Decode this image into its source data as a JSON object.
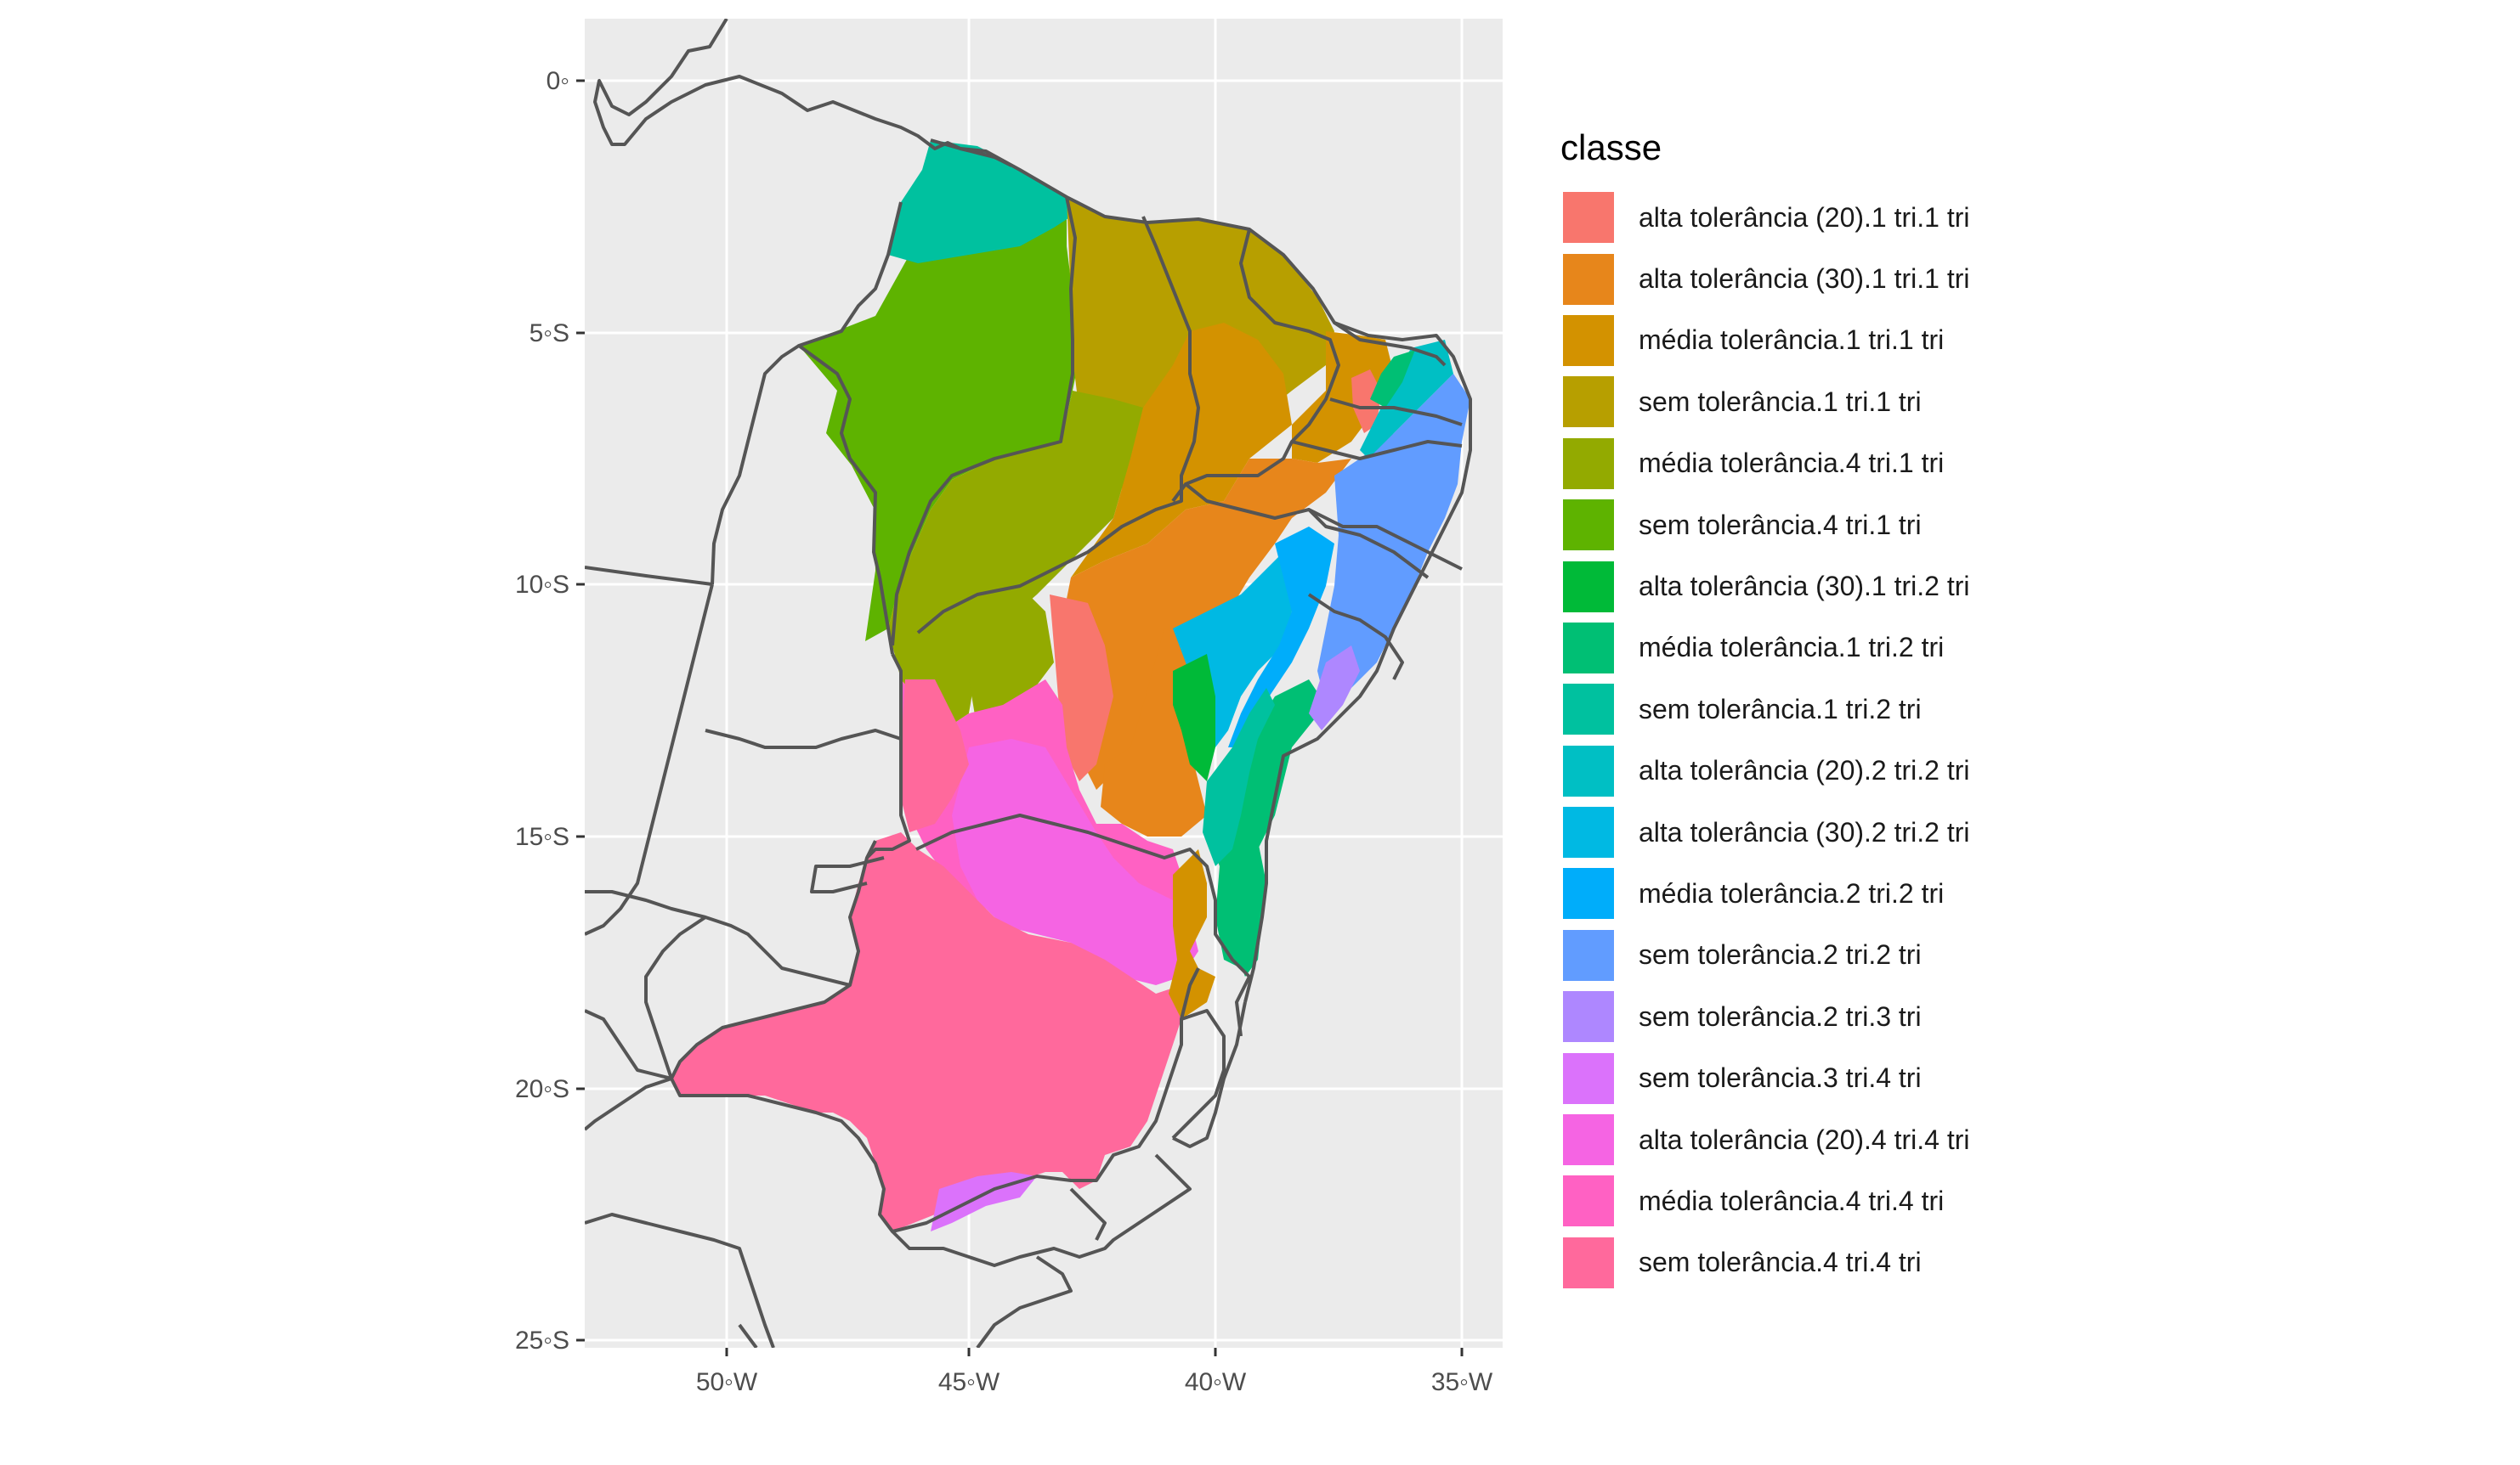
{
  "legend": {
    "title": "classe",
    "items": [
      {
        "label": "alta tolerância (20).1 tri.1 tri",
        "color": "#F8766D"
      },
      {
        "label": "alta tolerância (30).1 tri.1 tri",
        "color": "#E7861B"
      },
      {
        "label": "média tolerância.1 tri.1 tri",
        "color": "#D39200"
      },
      {
        "label": "sem tolerância.1 tri.1 tri",
        "color": "#B79F00"
      },
      {
        "label": "média tolerância.4 tri.1 tri",
        "color": "#93AA00"
      },
      {
        "label": "sem tolerância.4 tri.1 tri",
        "color": "#5EB300"
      },
      {
        "label": "alta tolerância (30).1 tri.2 tri",
        "color": "#00BA38"
      },
      {
        "label": "média tolerância.1 tri.2 tri",
        "color": "#00BF74"
      },
      {
        "label": "sem tolerância.1 tri.2 tri",
        "color": "#00C19F"
      },
      {
        "label": "alta tolerância (20).2 tri.2 tri",
        "color": "#00BFC4"
      },
      {
        "label": "alta tolerância (30).2 tri.2 tri",
        "color": "#00B9E3"
      },
      {
        "label": "média tolerância.2 tri.2 tri",
        "color": "#00ADFA"
      },
      {
        "label": "sem tolerância.2 tri.2 tri",
        "color": "#619CFF"
      },
      {
        "label": "sem tolerância.2 tri.3 tri",
        "color": "#AE87FF"
      },
      {
        "label": "sem tolerância.3 tri.4 tri",
        "color": "#DB72FB"
      },
      {
        "label": "alta tolerância (20).4 tri.4 tri",
        "color": "#F564E3"
      },
      {
        "label": "média tolerância.4 tri.4 tri",
        "color": "#FF61C3"
      },
      {
        "label": "sem tolerância.4 tri.4 tri",
        "color": "#FF699C"
      }
    ]
  },
  "axes": {
    "x_ticks": [
      "50◦W",
      "45◦W",
      "40◦W",
      "35◦W"
    ],
    "y_ticks": [
      "0◦",
      "5◦S",
      "10◦S",
      "15◦S",
      "20◦S",
      "25◦S"
    ]
  },
  "colors": {
    "panel_background": "#EBEBEB",
    "grid": "#FFFFFF",
    "boundary": "#555555"
  }
}
